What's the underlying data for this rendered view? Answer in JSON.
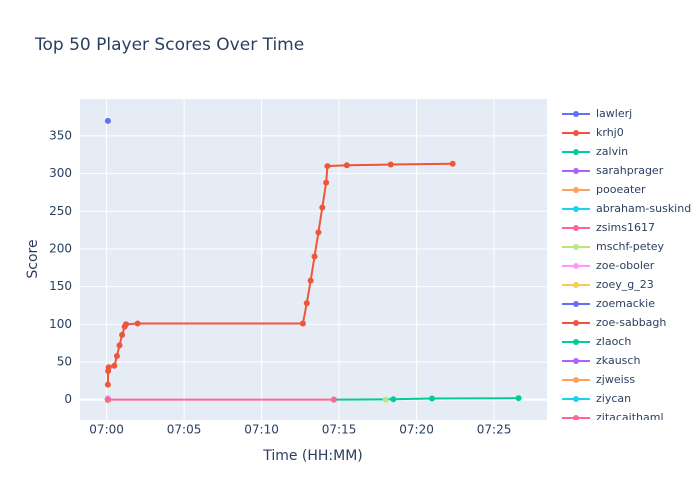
{
  "chart_data": {
    "type": "line",
    "title": "Top 50 Player Scores Over Time",
    "x_label": "Time (HH:MM)",
    "y_label": "Score",
    "xlim": [
      "06:58:17",
      "07:28:25"
    ],
    "xticks": [
      "07:00",
      "07:05",
      "07:10",
      "07:15",
      "07:20",
      "07:25"
    ],
    "ylim": [
      -27,
      399
    ],
    "yticks": [
      0,
      50,
      100,
      150,
      200,
      250,
      300,
      350
    ],
    "grid": true,
    "series": [
      {
        "name": "lawlerj",
        "color": "#636efa",
        "x": [
          "07:00:05"
        ],
        "values": [
          370
        ]
      },
      {
        "name": "krhj0",
        "color": "#EF553B",
        "x": [
          "07:00:05",
          "07:00:06",
          "07:00:08",
          "07:00:30",
          "07:00:40",
          "07:00:50",
          "07:01:00",
          "07:01:10",
          "07:01:15",
          "07:02:00",
          "07:12:40",
          "07:12:55",
          "07:13:10",
          "07:13:25",
          "07:13:40",
          "07:13:55",
          "07:14:10",
          "07:14:15",
          "07:15:30",
          "07:18:20",
          "07:22:20"
        ],
        "values": [
          20,
          38,
          43,
          45,
          58,
          72,
          86,
          97,
          100,
          101,
          101,
          128,
          158,
          190,
          222,
          255,
          288,
          310,
          311,
          312,
          313
        ]
      },
      {
        "name": "zalvin",
        "color": "#00cc96",
        "x": [
          "07:14:40",
          "07:18:30",
          "07:21:00",
          "07:26:35"
        ],
        "values": [
          0,
          0.5,
          1.5,
          2
        ]
      },
      {
        "name": "sarahprager",
        "color": "#ab63fa",
        "x": [
          "07:00:05"
        ],
        "values": [
          1
        ]
      },
      {
        "name": "pooeater",
        "color": "#FFA15A",
        "x": [
          "07:00:05"
        ],
        "values": [
          0
        ]
      },
      {
        "name": "abraham-suskind",
        "color": "#19d3f3",
        "x": [
          "07:00:05"
        ],
        "values": [
          1
        ]
      },
      {
        "name": "zsims1617",
        "color": "#FF6692",
        "x": [
          "07:00:05",
          "07:14:40"
        ],
        "values": [
          0,
          0
        ]
      },
      {
        "name": "mschf-petey",
        "color": "#B6E880",
        "x": [
          "07:18:00"
        ],
        "values": [
          0
        ]
      },
      {
        "name": "zoe-oboler",
        "color": "#FF97FF",
        "x": [
          "07:00:05"
        ],
        "values": [
          2
        ]
      },
      {
        "name": "zoey_g_23",
        "color": "#FECB52",
        "x": [
          "07:00:05"
        ],
        "values": [
          -1
        ]
      },
      {
        "name": "zoemackie",
        "color": "#636efa",
        "x": [
          "07:00:05"
        ],
        "values": [
          0
        ]
      },
      {
        "name": "zoe-sabbagh",
        "color": "#EF553B",
        "x": [
          "07:00:05"
        ],
        "values": [
          0
        ]
      },
      {
        "name": "zlaoch",
        "color": "#00cc96",
        "x": [
          "07:00:05"
        ],
        "values": [
          0
        ]
      },
      {
        "name": "zkausch",
        "color": "#ab63fa",
        "x": [
          "07:00:05"
        ],
        "values": [
          0
        ]
      },
      {
        "name": "zjweiss",
        "color": "#FFA15A",
        "x": [
          "07:00:05"
        ],
        "values": [
          0
        ]
      },
      {
        "name": "ziycan",
        "color": "#19d3f3",
        "x": [
          "07:00:05"
        ],
        "values": [
          0
        ]
      },
      {
        "name": "zitacaithaml",
        "color": "#FF6692",
        "x": [
          "07:00:05"
        ],
        "values": [
          0
        ]
      }
    ]
  }
}
